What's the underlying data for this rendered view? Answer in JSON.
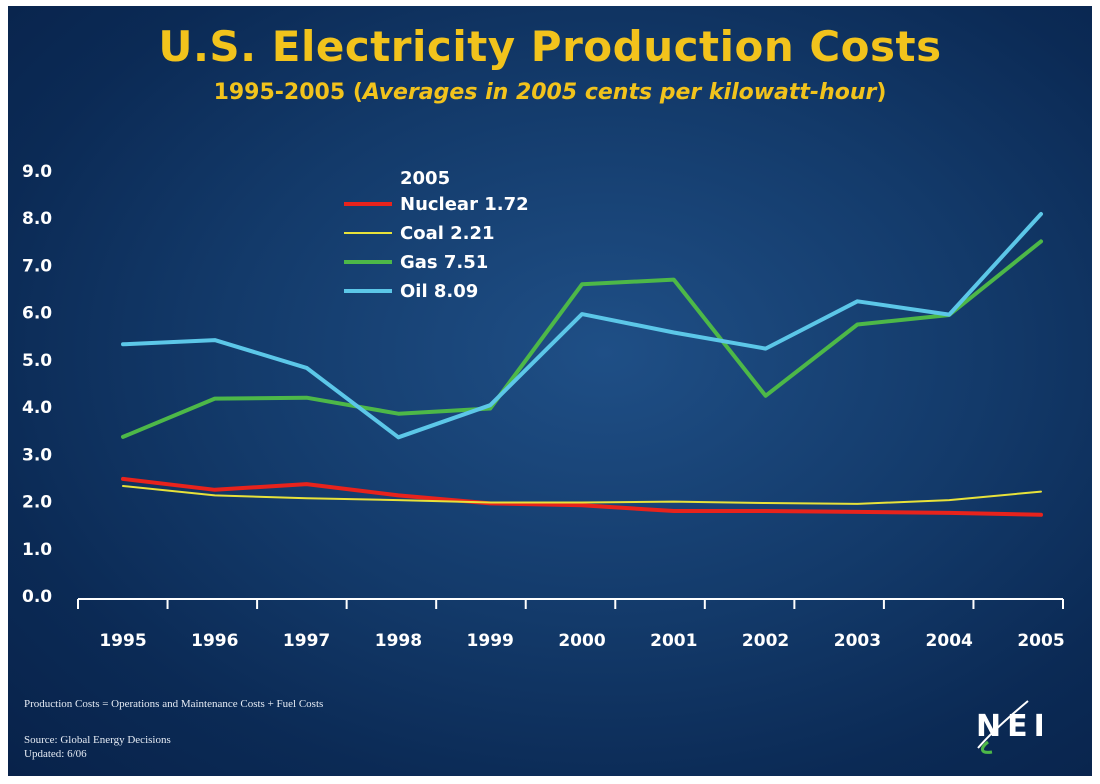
{
  "header": {
    "title": "U.S. Electricity Production Costs",
    "subtitle_prefix": "1995-2005 (",
    "subtitle_italic": "Averages in 2005 cents per kilowatt-hour",
    "subtitle_suffix": ")"
  },
  "footer": {
    "formula": "Production Costs = Operations and Maintenance Costs + Fuel Costs",
    "source": "Source: Global Energy Decisions",
    "updated": "Updated: 6/06"
  },
  "logo": {
    "text": "NEI"
  },
  "chart_data": {
    "type": "line",
    "title": "U.S. Electricity Production Costs",
    "subtitle": "1995-2005 (Averages in 2005 cents per kilowatt-hour)",
    "xlabel": "",
    "ylabel": "",
    "x": [
      "1995",
      "1996",
      "1997",
      "1998",
      "1999",
      "2000",
      "2001",
      "2002",
      "2003",
      "2004",
      "2005"
    ],
    "ylim": [
      0,
      9
    ],
    "y_ticks": [
      "0.0",
      "1.0",
      "2.0",
      "3.0",
      "4.0",
      "5.0",
      "6.0",
      "7.0",
      "8.0",
      "9.0"
    ],
    "grid": false,
    "legend": {
      "title": "2005",
      "placement": "top-left",
      "entries": [
        "Nuclear 1.72",
        "Coal 2.21",
        "Gas 7.51",
        "Oil 8.09"
      ]
    },
    "series": [
      {
        "name": "Nuclear",
        "color": "#e8231c",
        "values": [
          2.48,
          2.25,
          2.37,
          2.13,
          1.96,
          1.92,
          1.8,
          1.8,
          1.78,
          1.76,
          1.72
        ]
      },
      {
        "name": "Coal",
        "color": "#e8e23a",
        "values": [
          2.33,
          2.13,
          2.07,
          2.03,
          1.98,
          1.98,
          2.0,
          1.97,
          1.95,
          2.03,
          2.21
        ]
      },
      {
        "name": "Gas",
        "color": "#4db848",
        "values": [
          3.37,
          4.18,
          4.2,
          3.86,
          3.97,
          6.6,
          6.7,
          4.24,
          5.75,
          5.95,
          7.51
        ]
      },
      {
        "name": "Oil",
        "color": "#5cc7e8",
        "values": [
          5.33,
          5.42,
          4.83,
          3.36,
          4.04,
          5.97,
          5.58,
          5.24,
          6.24,
          5.96,
          8.09
        ]
      }
    ]
  }
}
